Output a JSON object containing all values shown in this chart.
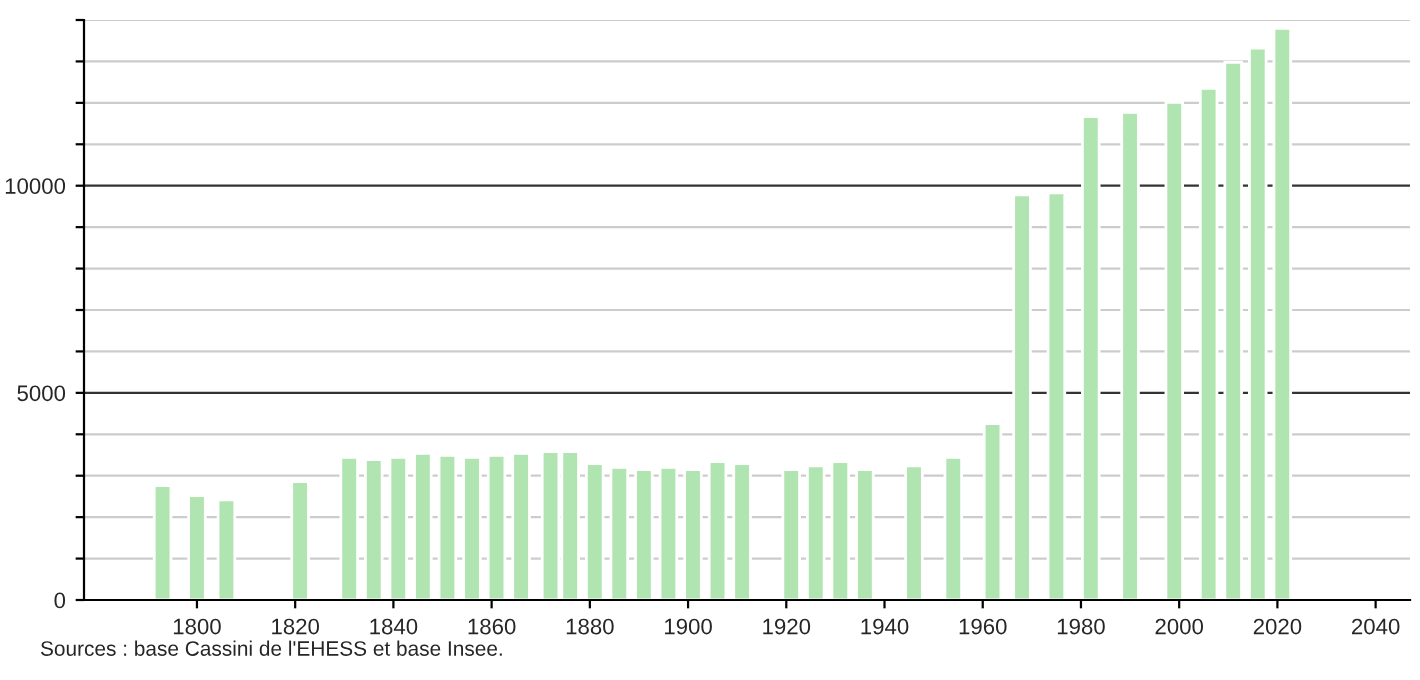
{
  "chart_data": {
    "type": "bar",
    "x": [
      1793,
      1800,
      1806,
      1821,
      1831,
      1836,
      1841,
      1846,
      1851,
      1856,
      1861,
      1866,
      1872,
      1876,
      1881,
      1886,
      1891,
      1896,
      1901,
      1906,
      1911,
      1921,
      1926,
      1931,
      1936,
      1946,
      1954,
      1962,
      1968,
      1975,
      1982,
      1990,
      1999,
      2006,
      2011,
      2016,
      2021
    ],
    "values": [
      2760,
      2520,
      2420,
      2860,
      3440,
      3390,
      3440,
      3540,
      3490,
      3440,
      3490,
      3540,
      3580,
      3580,
      3290,
      3200,
      3150,
      3200,
      3150,
      3340,
      3290,
      3150,
      3240,
      3340,
      3150,
      3240,
      3440,
      4260,
      9780,
      9830,
      11670,
      11770,
      12010,
      12350,
      12980,
      13320,
      13800
    ],
    "color": "#b0e4b0",
    "xlim": [
      1777,
      2047
    ],
    "xticks": [
      1800,
      1820,
      1840,
      1860,
      1880,
      1900,
      1920,
      1940,
      1960,
      1980,
      2000,
      2020,
      2040
    ],
    "ylim": [
      0,
      14000
    ],
    "yticks": [
      0,
      {
        "value": 1000,
        "label": null
      },
      {
        "value": 2000,
        "label": null
      },
      {
        "value": 3000,
        "label": null
      },
      {
        "value": 4000,
        "label": null
      },
      5000,
      {
        "value": 6000,
        "label": null
      },
      {
        "value": 7000,
        "label": null
      },
      {
        "value": 8000,
        "label": null
      },
      {
        "value": 9000,
        "label": null
      },
      10000,
      {
        "value": 11000,
        "label": null
      },
      {
        "value": 12000,
        "label": null
      },
      {
        "value": 13000,
        "label": null
      },
      {
        "value": 14000,
        "label": null
      }
    ],
    "grid": "y",
    "annotations": [
      "Sources : base Cassini de l'EHESS et base Insee."
    ]
  }
}
